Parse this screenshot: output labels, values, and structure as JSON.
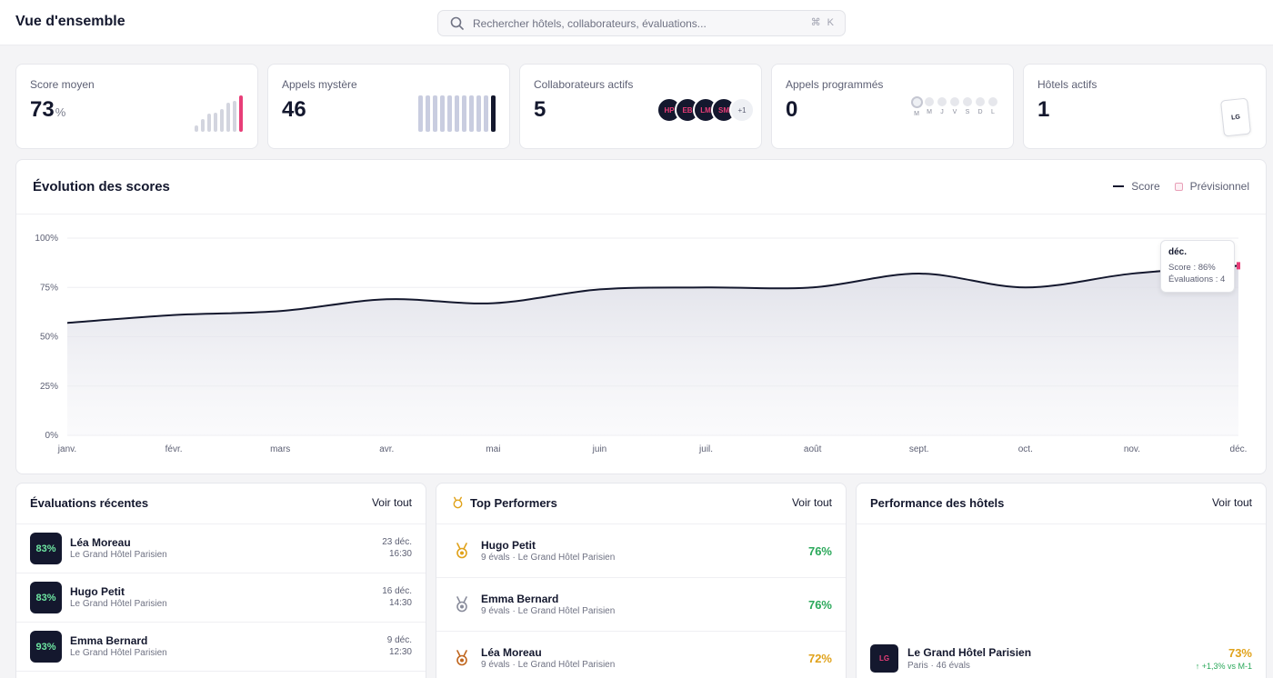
{
  "header": {
    "title": "Vue d'ensemble",
    "search_placeholder": "Rechercher hôtels, collaborateurs, évaluations...",
    "shortcut": "⌘ K"
  },
  "stats": {
    "score": {
      "label": "Score moyen",
      "value": "73",
      "unit": "%",
      "bar_levels": [
        0.18,
        0.35,
        0.5,
        0.52,
        0.62,
        0.8,
        0.85,
        1.0
      ],
      "accent": "#e83e78"
    },
    "mystery_calls": {
      "label": "Appels mystère",
      "value": "46",
      "bar_levels": [
        1,
        1,
        1,
        1,
        1,
        1,
        1,
        1,
        1,
        1,
        1
      ]
    },
    "collaborators": {
      "label": "Collaborateurs actifs",
      "value": "5",
      "avatars": [
        "HP",
        "EB",
        "LM",
        "SM"
      ],
      "more": "+1"
    },
    "scheduled": {
      "label": "Appels programmés",
      "value": "0",
      "days": [
        "M",
        "M",
        "J",
        "V",
        "S",
        "D",
        "L"
      ]
    },
    "hotels": {
      "label": "Hôtels actifs",
      "value": "1",
      "logo": "LG"
    }
  },
  "chart": {
    "title": "Évolution des scores",
    "legend_score": "Score",
    "legend_forecast": "Prévisionnel",
    "tooltip": {
      "month": "déc.",
      "score": "Score : 86%",
      "evals": "Évaluations : 4"
    }
  },
  "chart_data": {
    "type": "area",
    "x": [
      "janv.",
      "févr.",
      "mars",
      "avr.",
      "mai",
      "juin",
      "juil.",
      "août",
      "sept.",
      "oct.",
      "nov.",
      "déc."
    ],
    "series": [
      {
        "name": "Score",
        "values": [
          57,
          61,
          63,
          69,
          67,
          74,
          75,
          75,
          82,
          75,
          82,
          86
        ]
      }
    ],
    "y_ticks": [
      "0%",
      "25%",
      "50%",
      "75%",
      "100%"
    ],
    "ylim": [
      0,
      100
    ],
    "grid": true,
    "legend": "top-right"
  },
  "recent": {
    "title": "Évaluations récentes",
    "link": "Voir tout",
    "rows": [
      {
        "score": "83%",
        "name": "Léa Moreau",
        "hotel": "Le Grand Hôtel Parisien",
        "date": "23 déc.",
        "time": "16:30"
      },
      {
        "score": "83%",
        "name": "Hugo Petit",
        "hotel": "Le Grand Hôtel Parisien",
        "date": "16 déc.",
        "time": "14:30"
      },
      {
        "score": "93%",
        "name": "Emma Bernard",
        "hotel": "Le Grand Hôtel Parisien",
        "date": "9 déc.",
        "time": "12:30"
      }
    ]
  },
  "performers": {
    "title": "Top Performers",
    "link": "Voir tout",
    "rows": [
      {
        "name": "Hugo Petit",
        "sub": "9 évals · Le Grand Hôtel Parisien",
        "score": "76%",
        "medal_color": "#e0a21a",
        "score_color": "#2aa85a"
      },
      {
        "name": "Emma Bernard",
        "sub": "9 évals · Le Grand Hôtel Parisien",
        "score": "76%",
        "medal_color": "#8a8d9c",
        "score_color": "#2aa85a"
      },
      {
        "name": "Léa Moreau",
        "sub": "9 évals · Le Grand Hôtel Parisien",
        "score": "72%",
        "medal_color": "#c0661e",
        "score_color": "#e0a21a"
      }
    ]
  },
  "hotels_perf": {
    "title": "Performance des hôtels",
    "link": "Voir tout",
    "hotel": {
      "logo": "LG",
      "name": "Le Grand Hôtel Parisien",
      "sub": "Paris · 46 évals",
      "score": "73%",
      "trend": "↑ +1,3% vs M-1"
    }
  }
}
